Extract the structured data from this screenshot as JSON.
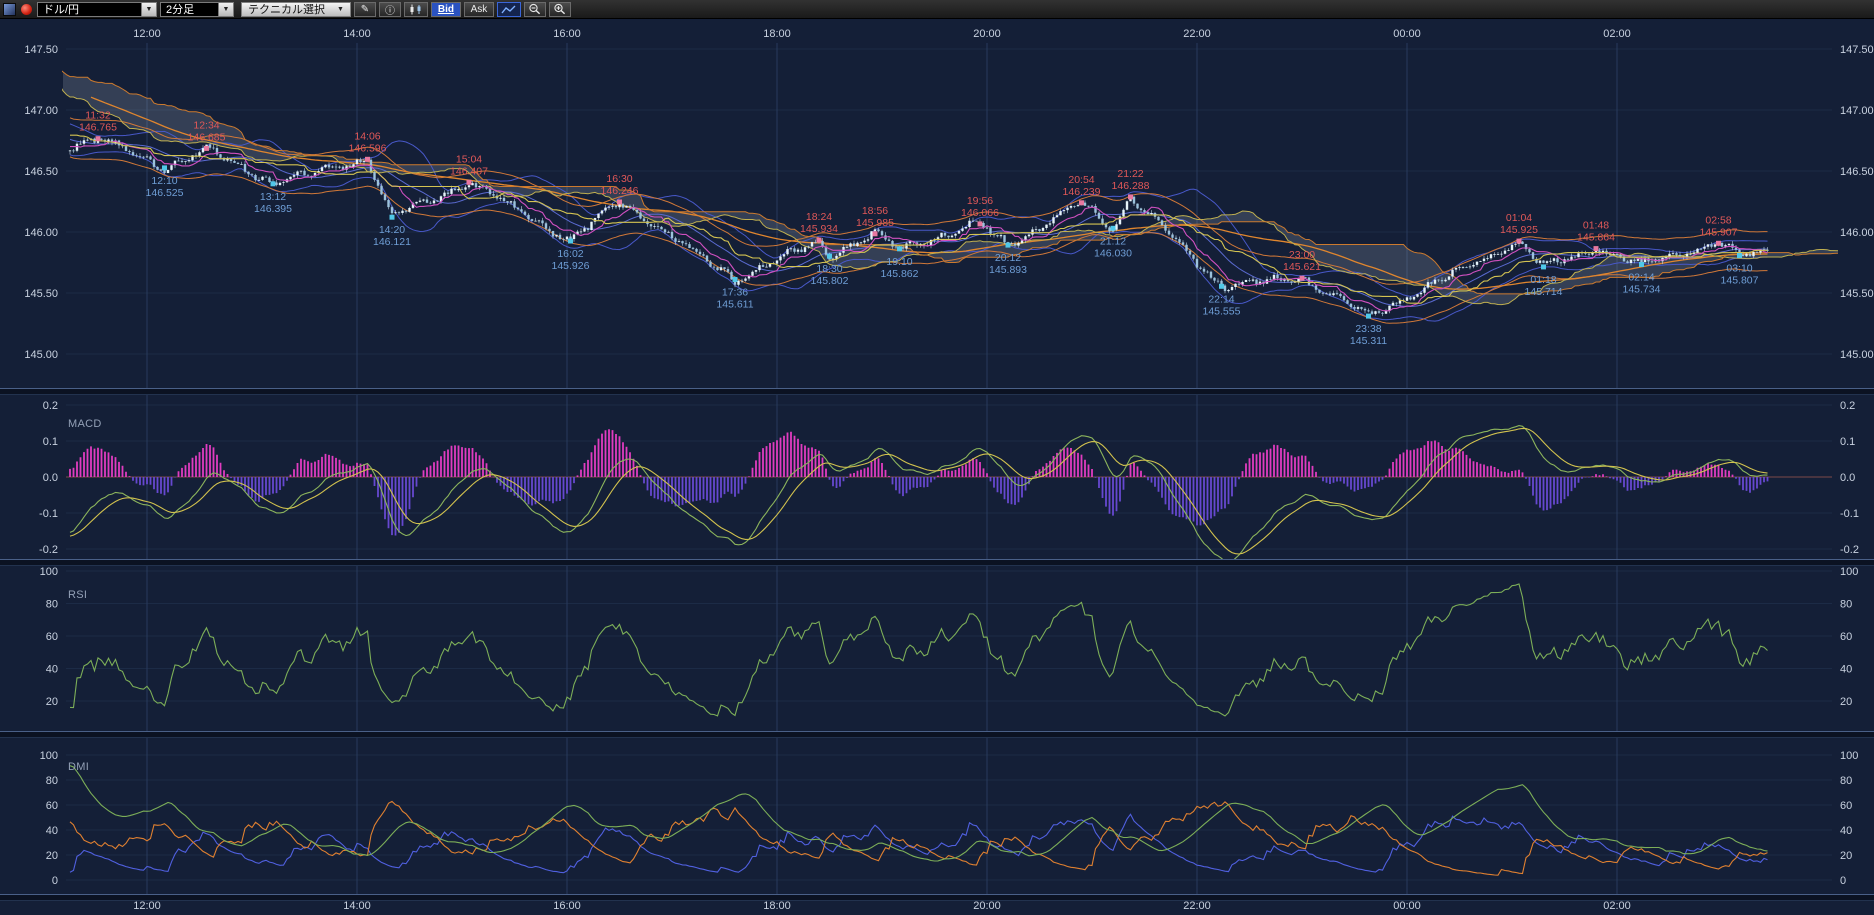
{
  "toolbar": {
    "pair_value": "ドル/円",
    "timeframe_value": "2分足",
    "technical_label": "テクニカル選択",
    "bid_label": "Bid",
    "ask_label": "Ask"
  },
  "panels": {
    "macd_title": "MACD",
    "rsi_title": "RSI",
    "dmi_title": "DMI"
  },
  "axes": {
    "time_ticks": [
      {
        "label": "12:00",
        "t": 12
      },
      {
        "label": "14:00",
        "t": 14
      },
      {
        "label": "16:00",
        "t": 16
      },
      {
        "label": "18:00",
        "t": 18
      },
      {
        "label": "20:00",
        "t": 20
      },
      {
        "label": "22:00",
        "t": 22
      },
      {
        "label": "00:00",
        "t": 24
      },
      {
        "label": "02:00",
        "t": 26
      }
    ],
    "price_ticks": [
      {
        "label": "147.50",
        "v": 147.5
      },
      {
        "label": "147.00",
        "v": 147.0
      },
      {
        "label": "146.50",
        "v": 146.5
      },
      {
        "label": "146.00",
        "v": 146.0
      },
      {
        "label": "145.50",
        "v": 145.5
      },
      {
        "label": "145.00",
        "v": 145.0
      }
    ],
    "macd_ticks": [
      {
        "label": "0.2",
        "v": 0.2
      },
      {
        "label": "0.1",
        "v": 0.1
      },
      {
        "label": "0.0",
        "v": 0
      },
      {
        "label": "-0.1",
        "v": -0.1
      },
      {
        "label": "-0.2",
        "v": -0.2
      }
    ],
    "rsi_ticks": [
      {
        "label": "100",
        "v": 100
      },
      {
        "label": "80",
        "v": 80
      },
      {
        "label": "60",
        "v": 60
      },
      {
        "label": "40",
        "v": 40
      },
      {
        "label": "20",
        "v": 20
      }
    ],
    "dmi_ticks": [
      {
        "label": "100",
        "v": 100
      },
      {
        "label": "80",
        "v": 80
      },
      {
        "label": "60",
        "v": 60
      },
      {
        "label": "40",
        "v": 40
      },
      {
        "label": "20",
        "v": 20
      },
      {
        "label": "0",
        "v": 0
      }
    ]
  },
  "colors": {
    "background": "#141f37",
    "grid": "#273a5c",
    "separator": "#4a6088",
    "axis_text": "#c9d2e0",
    "high_label": "#e05858",
    "low_label": "#6f9ed6",
    "high_marker": "#e878a0",
    "low_marker": "#50c8e8",
    "candle_up": "#e6f3fa",
    "candle_down": "#9cc2dc",
    "wick": "#b8cedd",
    "cloud": "rgba(168,178,198,0.22)",
    "sma_slow": "#e0862e",
    "tenkan": "#d050c0",
    "kijun": "#d4c452",
    "span_a": "#c0b050",
    "span_b": "#cc7a2e",
    "bollinger": "#4858c8",
    "boll_mid": "#5a6ad0",
    "envelope": "#d07838",
    "macd_line": "#8cb45c",
    "macd_signal": "#d2c24e",
    "macd_hist_pos": "#e03cc0",
    "macd_hist_neg": "#6648d0",
    "rsi_line": "#7cae58",
    "dmi_plus": "#5060e0",
    "dmi_minus": "#e08030",
    "dmi_adx": "#7cae58",
    "bid_active_bg": "#2a52c0"
  },
  "chart_data": {
    "type": "candlestick",
    "symbol": "ドル/円",
    "interval": "2分足",
    "quote_side": "Bid",
    "price_axis": {
      "min": 145.0,
      "max": 147.5,
      "tick": 0.5
    },
    "time_axis": {
      "ticks": [
        "12:00",
        "14:00",
        "16:00",
        "18:00",
        "20:00",
        "22:00",
        "00:00",
        "02:00"
      ]
    },
    "sub_panels": [
      {
        "name": "MACD",
        "range": [
          -0.2,
          0.2
        ],
        "ticks": [
          0.2,
          0.1,
          0.0,
          -0.1,
          -0.2
        ]
      },
      {
        "name": "RSI",
        "range": [
          0,
          100
        ],
        "ticks": [
          100,
          80,
          60,
          40,
          20
        ]
      },
      {
        "name": "DMI",
        "range": [
          0,
          100
        ],
        "ticks": [
          100,
          80,
          60,
          40,
          20,
          0
        ]
      }
    ],
    "overlays": [
      "ichimoku-cloud",
      "moving-averages",
      "bollinger-bands",
      "envelope"
    ],
    "path_start": {
      "t": 11.25,
      "price": "146.700"
    },
    "path_end": {
      "t": 27.45,
      "price": "145.850"
    },
    "pivots": [
      {
        "time": "11:32",
        "price": "146.765",
        "t": 11.5333,
        "kind": "high"
      },
      {
        "time": "12:10",
        "price": "146.525",
        "t": 12.1667,
        "kind": "low"
      },
      {
        "time": "12:34",
        "price": "146.685",
        "t": 12.5667,
        "kind": "high"
      },
      {
        "time": "13:12",
        "price": "146.395",
        "t": 13.2,
        "kind": "low"
      },
      {
        "time": "14:06",
        "price": "146.596",
        "t": 14.1,
        "kind": "high"
      },
      {
        "time": "14:20",
        "price": "146.121",
        "t": 14.3333,
        "kind": "low"
      },
      {
        "time": "15:04",
        "price": "146.407",
        "t": 15.0667,
        "kind": "high"
      },
      {
        "time": "16:02",
        "price": "145.926",
        "t": 16.0333,
        "kind": "low"
      },
      {
        "time": "16:30",
        "price": "146.246",
        "t": 16.5,
        "kind": "high"
      },
      {
        "time": "17:36",
        "price": "145.611",
        "t": 17.6,
        "kind": "low"
      },
      {
        "time": "18:24",
        "price": "145.934",
        "t": 18.4,
        "kind": "high"
      },
      {
        "time": "18:30",
        "price": "145.802",
        "t": 18.5,
        "kind": "low"
      },
      {
        "time": "18:56",
        "price": "145.985",
        "t": 18.9333,
        "kind": "high"
      },
      {
        "time": "19:10",
        "price": "145.862",
        "t": 19.1667,
        "kind": "low"
      },
      {
        "time": "19:56",
        "price": "146.066",
        "t": 19.9333,
        "kind": "high"
      },
      {
        "time": "20:12",
        "price": "145.893",
        "t": 20.2,
        "kind": "low"
      },
      {
        "time": "20:54",
        "price": "146.239",
        "t": 20.9,
        "kind": "high"
      },
      {
        "time": "21:12",
        "price": "146.030",
        "t": 21.2,
        "kind": "low"
      },
      {
        "time": "21:22",
        "price": "146.288",
        "t": 21.3667,
        "kind": "high"
      },
      {
        "time": "22:14",
        "price": "145.555",
        "t": 22.2333,
        "kind": "low"
      },
      {
        "time": "23:00",
        "price": "145.621",
        "t": 23.0,
        "kind": "high"
      },
      {
        "time": "23:38",
        "price": "145.311",
        "t": 23.6333,
        "kind": "low"
      },
      {
        "time": "01:04",
        "price": "145.925",
        "t": 25.0667,
        "kind": "high"
      },
      {
        "time": "01:18",
        "price": "145.714",
        "t": 25.3,
        "kind": "low"
      },
      {
        "time": "01:48",
        "price": "145.864",
        "t": 25.8,
        "kind": "high"
      },
      {
        "time": "02:14",
        "price": "145.734",
        "t": 26.2333,
        "kind": "low"
      },
      {
        "time": "02:58",
        "price": "145.907",
        "t": 26.9667,
        "kind": "high"
      },
      {
        "time": "03:10",
        "price": "145.807",
        "t": 27.1667,
        "kind": "low"
      }
    ]
  }
}
